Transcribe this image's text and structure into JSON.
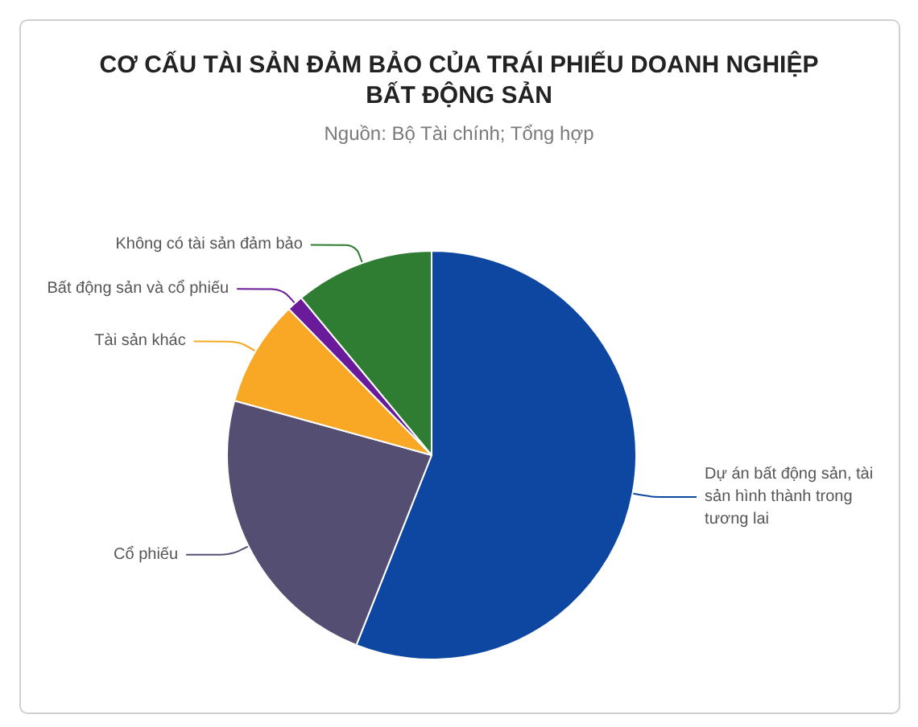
{
  "chart_data": {
    "type": "pie",
    "title": "CƠ CẤU TÀI SẢN ĐẢM BẢO CỦA TRÁI PHIẾU DOANH NGHIỆP BẤT ĐỘNG SẢN",
    "subtitle": "Nguồn: Bộ Tài chính; Tổng hợp",
    "categories": [
      "Dự án bất động sản, tài sản hình thành trong tương lai",
      "Cổ phiếu",
      "Tài sản khác",
      "Bất động sản và cổ phiếu",
      "Không có tài sản đảm bảo"
    ],
    "values": [
      56.0,
      23.3,
      8.4,
      1.3,
      11.0
    ],
    "colors": [
      "#0d47a1",
      "#544e72",
      "#f9a825",
      "#6a1b9a",
      "#2e7d32"
    ]
  }
}
